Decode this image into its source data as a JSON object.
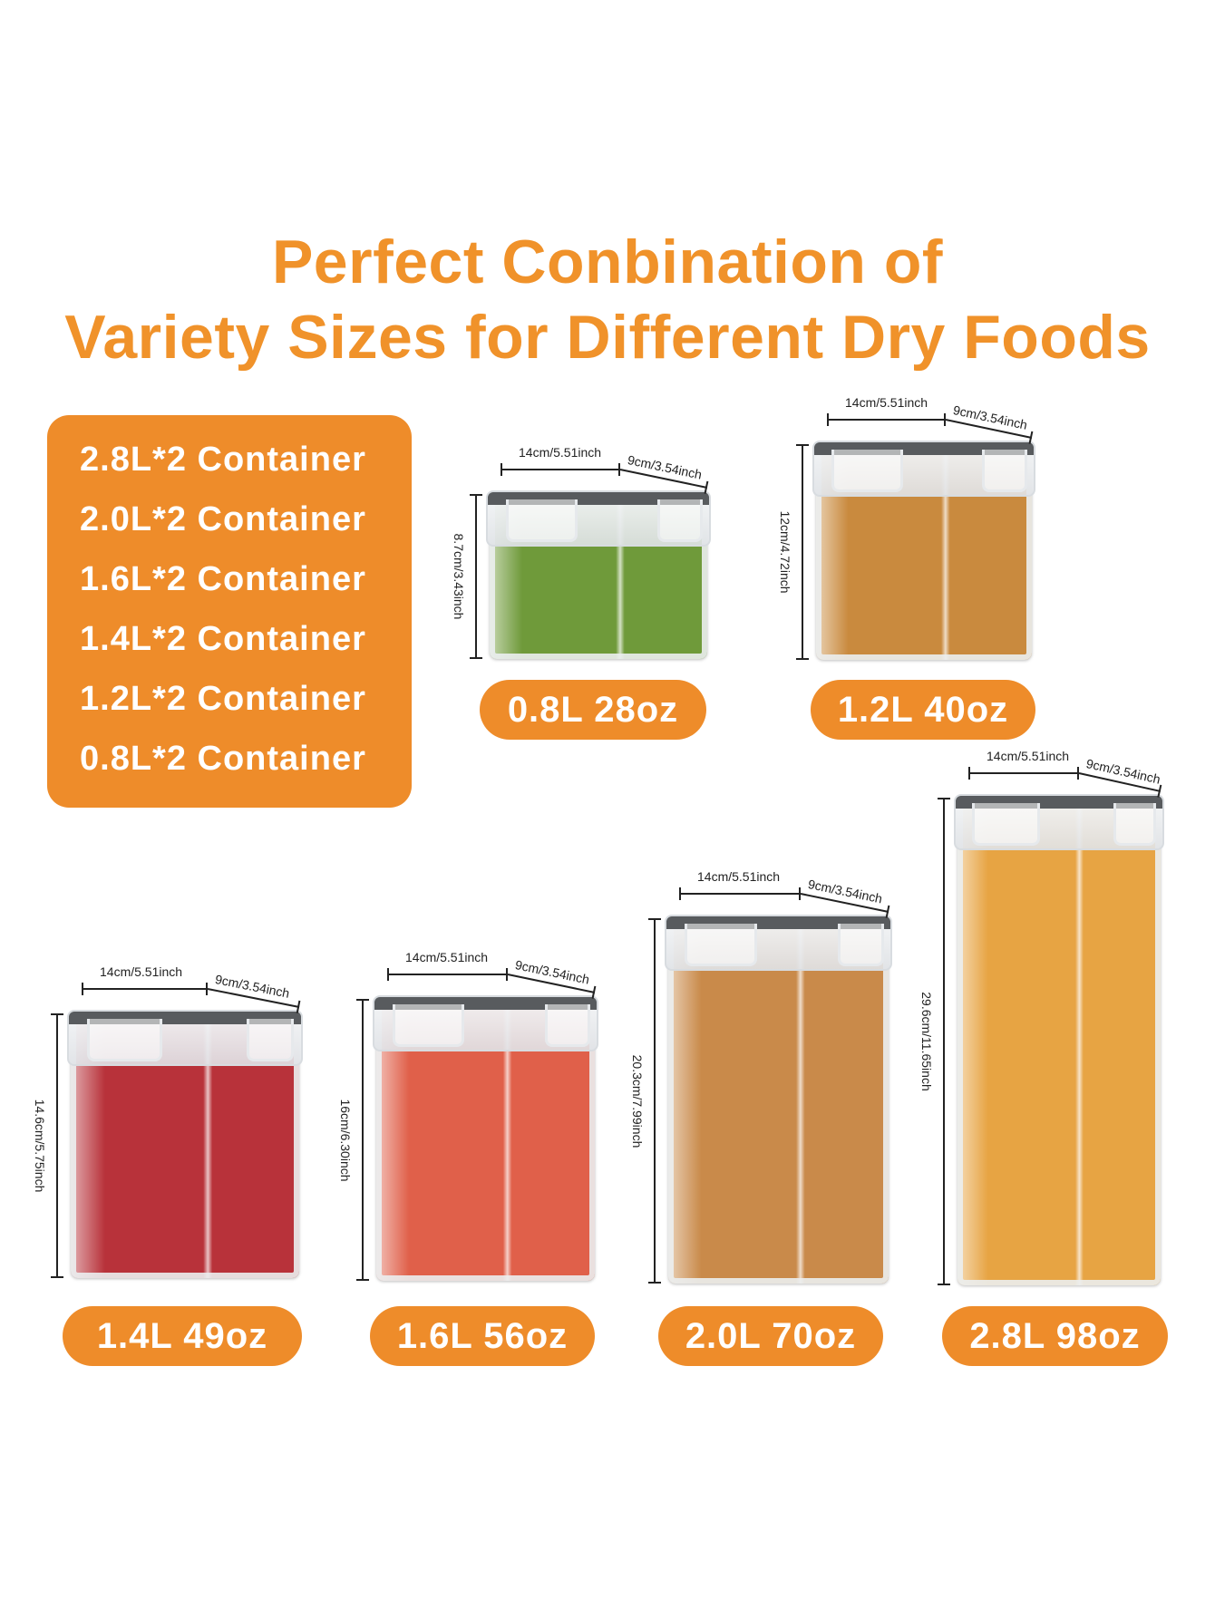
{
  "title": {
    "line1": "Perfect Conbination of",
    "line2": "Variety Sizes for Different Dry Foods"
  },
  "set_list": [
    "2.8L*2 Container",
    "2.0L*2 Container",
    "1.6L*2 Container",
    "1.4L*2 Container",
    "1.2L*2 Container",
    "0.8L*2 Container"
  ],
  "containers": [
    {
      "label": "0.8L 28oz",
      "width": "14cm/5.51inch",
      "depth": "9cm/3.54inch",
      "height": "8.7cm/3.43inch",
      "food_color": "#6f9a3a"
    },
    {
      "label": "1.2L 40oz",
      "width": "14cm/5.51inch",
      "depth": "9cm/3.54inch",
      "height": "12cm/4.72inch",
      "food_color": "#c98a3e"
    },
    {
      "label": "1.4L 49oz",
      "width": "14cm/5.51inch",
      "depth": "9cm/3.54inch",
      "height": "14.6cm/5.75inch",
      "food_color": "#b8323a"
    },
    {
      "label": "1.6L 56oz",
      "width": "14cm/5.51inch",
      "depth": "9cm/3.54inch",
      "height": "16cm/6.30inch",
      "food_color": "#e0604a"
    },
    {
      "label": "2.0L 70oz",
      "width": "14cm/5.51inch",
      "depth": "9cm/3.54inch",
      "height": "20.3cm/7.99inch",
      "food_color": "#c98a4a"
    },
    {
      "label": "2.8L 98oz",
      "width": "14cm/5.51inch",
      "depth": "9cm/3.54inch",
      "height": "29.6cm/11.65inch",
      "food_color": "#e7a443"
    }
  ],
  "colors": {
    "accent": "#ee8c2a",
    "title": "#f0922a"
  }
}
